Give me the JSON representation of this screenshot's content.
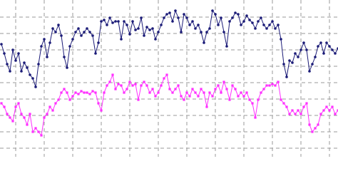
{
  "chart_data": {
    "type": "line",
    "grid": true,
    "xlim": [
      0,
      474
    ],
    "xticks": [
      22,
      62,
      102,
      142,
      182,
      222,
      262,
      302,
      342,
      382,
      422,
      462
    ],
    "ylim": [
      0,
      220
    ],
    "yticks": [
      12,
      35,
      58,
      81,
      104,
      127,
      150,
      173,
      196
    ],
    "x": [
      2,
      6,
      10,
      14,
      18,
      22,
      26,
      30,
      34,
      38,
      42,
      46,
      50,
      54,
      58,
      62,
      66,
      70,
      74,
      78,
      82,
      86,
      90,
      94,
      98,
      102,
      106,
      110,
      114,
      118,
      122,
      126,
      130,
      134,
      138,
      142,
      146,
      150,
      154,
      158,
      162,
      166,
      170,
      174,
      178,
      182,
      186,
      190,
      194,
      198,
      202,
      206,
      210,
      214,
      218,
      222,
      226,
      230,
      234,
      238,
      242,
      246,
      250,
      254,
      258,
      262,
      266,
      270,
      274,
      278,
      282,
      286,
      290,
      294,
      298,
      302,
      306,
      310,
      314,
      318,
      322,
      326,
      330,
      334,
      338,
      342,
      346,
      350,
      354,
      358,
      362,
      366,
      370,
      374,
      378,
      382,
      386,
      390,
      394,
      398,
      402,
      406,
      410,
      414,
      418,
      422,
      426,
      430,
      434,
      438,
      442,
      446,
      450,
      454,
      458,
      462,
      466,
      470,
      474
    ],
    "series": [
      {
        "color": "#1c1c78",
        "marker": "circle",
        "values": [
          158,
          145,
          130,
          120,
          150,
          135,
          145,
          120,
          132,
          125,
          115,
          110,
          98,
          130,
          155,
          165,
          140,
          160,
          180,
          175,
          185,
          170,
          140,
          125,
          155,
          165,
          175,
          180,
          170,
          175,
          180,
          175,
          170,
          145,
          160,
          190,
          192,
          185,
          195,
          188,
          190,
          190,
          165,
          190,
          185,
          172,
          190,
          178,
          180,
          195,
          170,
          182,
          178,
          180,
          165,
          175,
          185,
          195,
          200,
          202,
          190,
          205,
          195,
          175,
          200,
          195,
          185,
          190,
          180,
          185,
          175,
          160,
          175,
          180,
          205,
          200,
          185,
          195,
          175,
          155,
          190,
          195,
          202,
          200,
          185,
          190,
          198,
          192,
          188,
          180,
          190,
          195,
          185,
          180,
          185,
          190,
          180,
          185,
          165,
          130,
          112,
          135,
          132,
          145,
          140,
          150,
          160,
          150,
          120,
          130,
          140,
          155,
          160,
          145,
          160,
          155,
          150,
          145,
          152
        ]
      },
      {
        "color": "#ff30ff",
        "marker": "square",
        "values": [
          75,
          70,
          60,
          55,
          50,
          70,
          75,
          60,
          55,
          45,
          60,
          35,
          40,
          35,
          30,
          55,
          60,
          70,
          65,
          75,
          80,
          90,
          95,
          90,
          80,
          85,
          90,
          88,
          92,
          90,
          90,
          88,
          92,
          90,
          75,
          65,
          90,
          100,
          105,
          115,
          95,
          102,
          100,
          90,
          95,
          105,
          100,
          102,
          80,
          100,
          105,
          100,
          90,
          95,
          85,
          90,
          100,
          110,
          115,
          95,
          90,
          95,
          100,
          85,
          80,
          90,
          85,
          95,
          90,
          85,
          95,
          90,
          70,
          90,
          85,
          95,
          100,
          90,
          105,
          95,
          80,
          100,
          95,
          85,
          90,
          85,
          90,
          80,
          75,
          55,
          80,
          90,
          95,
          100,
          100,
          102,
          100,
          105,
          80,
          75,
          70,
          60,
          65,
          60,
          65,
          60,
          70,
          75,
          45,
          35,
          40,
          45,
          60,
          65,
          70,
          65,
          70,
          60,
          65
        ]
      }
    ]
  }
}
